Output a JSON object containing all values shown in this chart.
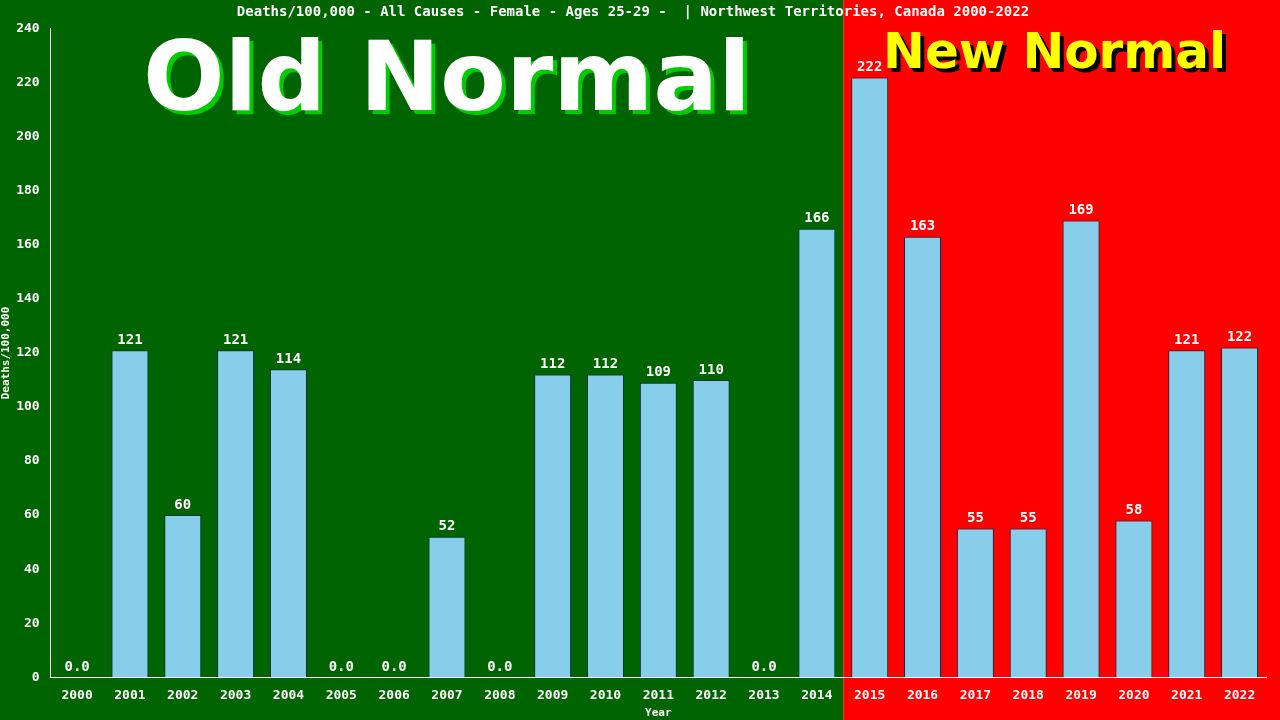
{
  "chart_data": {
    "type": "bar",
    "title": "Deaths/100,000 - All Causes - Female - Ages 25-29 -  | Northwest Territories, Canada 2000-2022",
    "xlabel": "Year",
    "ylabel": "Deaths/100,000",
    "categories": [
      "2000",
      "2001",
      "2002",
      "2003",
      "2004",
      "2005",
      "2006",
      "2007",
      "2008",
      "2009",
      "2010",
      "2011",
      "2012",
      "2013",
      "2014",
      "2015",
      "2016",
      "2017",
      "2018",
      "2019",
      "2020",
      "2021",
      "2022"
    ],
    "values": [
      0,
      121,
      60,
      121,
      114,
      0,
      0,
      52,
      0,
      112,
      112,
      109,
      110,
      0,
      166,
      222,
      163,
      55,
      55,
      169,
      58,
      121,
      122
    ],
    "value_labels": [
      "0.0",
      "121",
      "60",
      "121",
      "114",
      "0.0",
      "0.0",
      "52",
      "0.0",
      "112",
      "112",
      "109",
      "110",
      "0.0",
      "166",
      "222",
      "163",
      "55",
      "55",
      "169",
      "58",
      "121",
      "122"
    ],
    "color": "#87ceeb",
    "ylim": [
      0,
      240
    ],
    "yticks": [
      0,
      20,
      40,
      60,
      80,
      100,
      120,
      140,
      160,
      180,
      200,
      220,
      240
    ],
    "grid": false,
    "legend": false,
    "bands": [
      {
        "axis": "x",
        "from": "2000",
        "to": "2014",
        "label": "Old Normal",
        "color": "#006400"
      },
      {
        "axis": "x",
        "from": "2015",
        "to": "2022",
        "label": "New Normal",
        "color": "#ff0000"
      }
    ]
  }
}
